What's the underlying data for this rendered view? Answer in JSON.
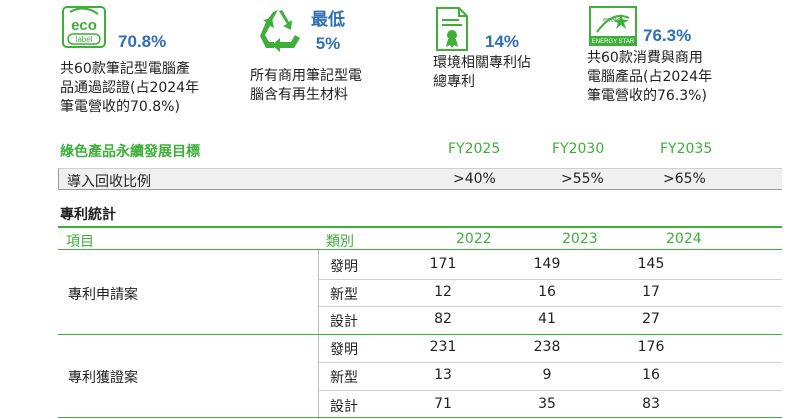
{
  "stats": [
    {
      "value": "70.8%",
      "desc": [
        "共60款筆記型電腦產",
        "品通過認證(占2024年",
        "筆電營收的70.8%)"
      ],
      "icon": "ecolabel-icon",
      "icon_text": [
        "eco",
        "label"
      ]
    },
    {
      "value": [
        "最低",
        "5%"
      ],
      "desc": [
        "所有商用筆記型電",
        "腦含有再生材料"
      ],
      "icon": "recycle-icon"
    },
    {
      "value": "14%",
      "desc": [
        "環境相關專利佔",
        "總專利"
      ],
      "icon": "certificate-icon"
    },
    {
      "value": "76.3%",
      "desc": [
        "共60款消費與商用",
        "電腦產品(占2024年",
        "筆電營收的76.3%)"
      ],
      "icon": "energy-star-icon",
      "icon_text": [
        "energy",
        "ENERGY STAR"
      ]
    }
  ],
  "goals": {
    "title": "綠色產品永續發展目標",
    "columns": [
      "FY2025",
      "FY2030",
      "FY2035"
    ],
    "row_label": "導入回收比例",
    "values": [
      ">40%",
      ">55%",
      ">65%"
    ]
  },
  "patents": {
    "title": "專利統計",
    "headers": {
      "item": "項目",
      "category": "類別",
      "years": [
        "2022",
        "2023",
        "2024"
      ]
    },
    "groups": [
      {
        "label": "專利申請案",
        "rows": [
          {
            "category": "發明",
            "values": [
              "171",
              "149",
              "145"
            ]
          },
          {
            "category": "新型",
            "values": [
              "12",
              "16",
              "17"
            ]
          },
          {
            "category": "設計",
            "values": [
              "82",
              "41",
              "27"
            ]
          }
        ]
      },
      {
        "label": "專利獲證案",
        "rows": [
          {
            "category": "發明",
            "values": [
              "231",
              "238",
              "176"
            ]
          },
          {
            "category": "新型",
            "values": [
              "13",
              "9",
              "16"
            ]
          },
          {
            "category": "設計",
            "values": [
              "71",
              "35",
              "83"
            ]
          }
        ]
      }
    ]
  },
  "colors": {
    "accent_green": "#3fae3b",
    "accent_blue": "#2f6fb3"
  }
}
